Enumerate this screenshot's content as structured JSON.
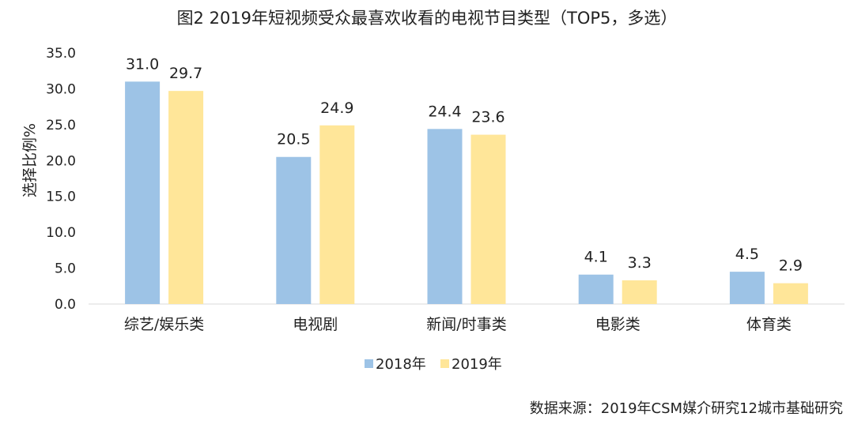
{
  "chart_data": {
    "type": "bar",
    "title": "图2  2019年短视频受众最喜欢收看的电视节目类型（TOP5，多选）",
    "ylabel": "选择比例%",
    "xlabel": "",
    "ylim": [
      0,
      35
    ],
    "yticks": [
      0,
      5,
      10,
      15,
      20,
      25,
      30,
      35
    ],
    "ytick_labels": [
      "0.0",
      "5.0",
      "10.0",
      "15.0",
      "20.0",
      "25.0",
      "30.0",
      "35.0"
    ],
    "categories": [
      "综艺/娱乐类",
      "电视剧",
      "新闻/时事类",
      "电影类",
      "体育类"
    ],
    "series": [
      {
        "name": "2018年",
        "color": "#9dc3e6",
        "values": [
          31.0,
          20.5,
          24.4,
          4.1,
          4.5
        ]
      },
      {
        "name": "2019年",
        "color": "#ffe699",
        "values": [
          29.7,
          24.9,
          23.6,
          3.3,
          2.9
        ]
      }
    ],
    "grid": false,
    "legend_position": "bottom",
    "source": "数据来源：2019年CSM媒介研究12城市基础研究"
  }
}
